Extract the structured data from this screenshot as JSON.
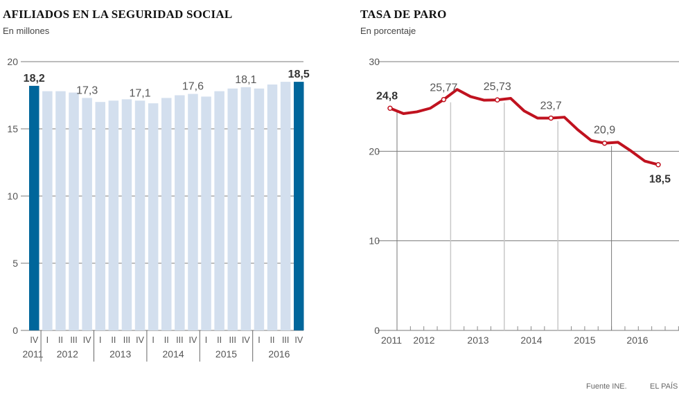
{
  "chart_data": [
    {
      "type": "bar",
      "title": "AFILIADOS EN LA SEGURIDAD SOCIAL",
      "subtitle": "En millones",
      "xlabel": "",
      "ylabel": "",
      "ylim": [
        0,
        20
      ],
      "yticks": [
        0,
        5,
        10,
        15,
        20
      ],
      "grid": true,
      "categories": [
        "IV",
        "I",
        "II",
        "III",
        "IV",
        "I",
        "II",
        "III",
        "IV",
        "I",
        "II",
        "III",
        "IV",
        "I",
        "II",
        "III",
        "IV",
        "I",
        "II",
        "III",
        "IV"
      ],
      "years": [
        {
          "label": "2011",
          "quarters": 1
        },
        {
          "label": "2012",
          "quarters": 4
        },
        {
          "label": "2013",
          "quarters": 4
        },
        {
          "label": "2014",
          "quarters": 4
        },
        {
          "label": "2015",
          "quarters": 4
        },
        {
          "label": "2016",
          "quarters": 4
        }
      ],
      "values": [
        18.2,
        17.8,
        17.8,
        17.7,
        17.3,
        17.0,
        17.1,
        17.2,
        17.1,
        16.9,
        17.3,
        17.5,
        17.6,
        17.4,
        17.8,
        18.0,
        18.1,
        18.0,
        18.3,
        18.5,
        18.5
      ],
      "highlighted": [
        0,
        20
      ],
      "colors": {
        "bar": "#d3dfee",
        "highlight": "#00669b",
        "grid": "#7a7a7a"
      },
      "annotations": [
        {
          "index": 0,
          "text": "18,2",
          "bold": true
        },
        {
          "index": 4,
          "text": "17,3",
          "bold": false
        },
        {
          "index": 8,
          "text": "17,1",
          "bold": false
        },
        {
          "index": 12,
          "text": "17,6",
          "bold": false
        },
        {
          "index": 16,
          "text": "18,1",
          "bold": false
        },
        {
          "index": 20,
          "text": "18,5",
          "bold": true
        }
      ]
    },
    {
      "type": "line",
      "title": "TASA DE PARO",
      "subtitle": "En porcentaje",
      "xlabel": "",
      "ylabel": "",
      "ylim": [
        0,
        30
      ],
      "yticks": [
        0,
        10,
        20,
        30
      ],
      "grid": true,
      "x": [
        "2011-IV",
        "2012-I",
        "2012-II",
        "2012-III",
        "2012-IV",
        "2013-I",
        "2013-II",
        "2013-III",
        "2013-IV",
        "2014-I",
        "2014-II",
        "2014-III",
        "2014-IV",
        "2015-I",
        "2015-II",
        "2015-III",
        "2015-IV",
        "2016-I",
        "2016-II",
        "2016-III",
        "2016-IV"
      ],
      "year_labels": [
        "2011",
        "2012",
        "2013",
        "2014",
        "2015",
        "2016"
      ],
      "values": [
        24.8,
        24.2,
        24.4,
        24.8,
        25.77,
        26.9,
        26.1,
        25.7,
        25.73,
        25.9,
        24.5,
        23.7,
        23.7,
        23.8,
        22.4,
        21.2,
        20.9,
        21.0,
        20.0,
        18.9,
        18.5
      ],
      "colors": {
        "line": "#c0121f",
        "grid": "#7a7a7a",
        "year_divider": "#c8c8c8"
      },
      "annotations": [
        {
          "index": 0,
          "text": "24,8",
          "bold": true
        },
        {
          "index": 4,
          "text": "25,77",
          "bold": false
        },
        {
          "index": 8,
          "text": "25,73",
          "bold": false
        },
        {
          "index": 12,
          "text": "23,7",
          "bold": false
        },
        {
          "index": 16,
          "text": "20,9",
          "bold": false
        },
        {
          "index": 20,
          "text": "18,5",
          "bold": true
        }
      ]
    }
  ],
  "footer": {
    "source": "Fuente INE.",
    "brand": "EL PAÍS"
  }
}
